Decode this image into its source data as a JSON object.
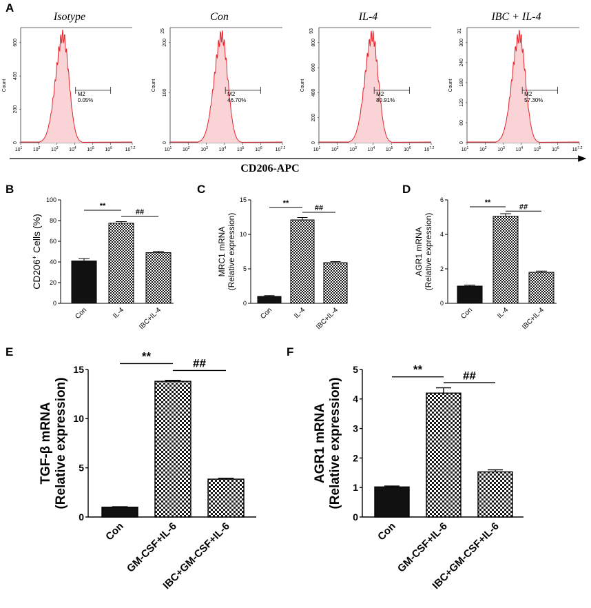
{
  "figure": {
    "panel_letters": [
      "A",
      "B",
      "C",
      "D",
      "E",
      "F"
    ],
    "flow_axis_label": "CD206-APC",
    "flow_x_ticks": [
      {
        "base": "10",
        "exp": "1"
      },
      {
        "base": "10",
        "exp": "2"
      },
      {
        "base": "10",
        "exp": "3"
      },
      {
        "base": "10",
        "exp": "4"
      },
      {
        "base": "10",
        "exp": "5"
      },
      {
        "base": "10",
        "exp": "6"
      },
      {
        "base": "10",
        "exp": "7.2"
      }
    ],
    "flow_y_label": "Count",
    "gate_label": "M2"
  },
  "colors": {
    "hist_line": "#e8222a",
    "hist_fill": "#f9d3d5",
    "bar_solid": "#111111",
    "axis": "#000000"
  },
  "chart_data": [
    {
      "type": "histogram",
      "panel": "A",
      "histograms": [
        {
          "title": "Isotype",
          "gate_percent": "0.05%",
          "peak_log": 3.35,
          "y_top_label": "",
          "y_ticks": [
            0,
            200,
            400,
            600
          ]
        },
        {
          "title": "Con",
          "gate_percent": "46.70%",
          "peak_log": 3.85,
          "y_top_label": "25",
          "y_ticks": [
            0,
            100,
            200
          ]
        },
        {
          "title": "IL-4",
          "gate_percent": "80.91%",
          "peak_log": 3.95,
          "y_top_label": "93",
          "y_ticks": [
            0,
            200,
            400,
            600,
            800
          ]
        },
        {
          "title": "IBC + IL-4",
          "gate_percent": "57.30%",
          "peak_log": 3.9,
          "y_top_label": "31",
          "y_ticks": [
            0,
            60,
            120,
            180,
            240,
            300
          ]
        }
      ],
      "xlabel": "CD206-APC"
    },
    {
      "type": "bar",
      "panel": "B",
      "categories": [
        "Con",
        "IL-4",
        "IBC+IL-4"
      ],
      "values": [
        41,
        77.5,
        49
      ],
      "errors": [
        2.2,
        1.5,
        1.2
      ],
      "patterns": [
        "solid",
        "check",
        "check"
      ],
      "ylabel": "CD206<sup>+</sup> Cells (%)",
      "ylabel_lines": [
        "CD206+ Cells (%)"
      ],
      "ylim": [
        0,
        100
      ],
      "yticks": [
        0,
        20,
        40,
        60,
        80,
        100
      ],
      "sig": [
        {
          "from": 0,
          "to": 1,
          "label": "**",
          "y": 90
        },
        {
          "from": 1,
          "to": 2,
          "label": "##",
          "y": 84
        }
      ]
    },
    {
      "type": "bar",
      "panel": "C",
      "categories": [
        "Con",
        "IL-4",
        "IBC+IL-4"
      ],
      "values": [
        1,
        12.1,
        5.9
      ],
      "errors": [
        0.12,
        0.35,
        0.15
      ],
      "patterns": [
        "solid",
        "check",
        "check"
      ],
      "ylabel_lines": [
        "MRC1 mRNA",
        "(Relative expression)"
      ],
      "ylim": [
        0,
        15
      ],
      "yticks": [
        0,
        5,
        10,
        15
      ],
      "sig": [
        {
          "from": 0,
          "to": 1,
          "label": "**",
          "y": 13.9
        },
        {
          "from": 1,
          "to": 2,
          "label": "##",
          "y": 13.2
        }
      ]
    },
    {
      "type": "bar",
      "panel": "D",
      "categories": [
        "Con",
        "IL-4",
        "IBC+IL-4"
      ],
      "values": [
        1,
        5.05,
        1.8
      ],
      "errors": [
        0.06,
        0.15,
        0.07
      ],
      "patterns": [
        "solid",
        "check",
        "check"
      ],
      "ylabel_lines": [
        "AGR1 mRNA",
        "(Relative expression)"
      ],
      "ylim": [
        0,
        6
      ],
      "yticks": [
        0,
        2,
        4,
        6
      ],
      "sig": [
        {
          "from": 0,
          "to": 1,
          "label": "**",
          "y": 5.6
        },
        {
          "from": 1,
          "to": 2,
          "label": "##",
          "y": 5.35
        }
      ]
    },
    {
      "type": "bar",
      "panel": "E",
      "categories": [
        "Con",
        "GM-CSF+IL-6",
        "IBC+GM-CSF+IL-6"
      ],
      "values": [
        1,
        13.8,
        3.85
      ],
      "errors": [
        0.05,
        0.1,
        0.1
      ],
      "patterns": [
        "solid",
        "check",
        "check"
      ],
      "ylabel_lines": [
        "TGF-β mRNA",
        "(Relative expression)"
      ],
      "ylim": [
        0,
        15
      ],
      "yticks": [
        0,
        5,
        10,
        15
      ],
      "sig": [
        {
          "from": 0,
          "to": 1,
          "label": "**",
          "y": 15.6
        },
        {
          "from": 1,
          "to": 2,
          "label": "##",
          "y": 14.9
        }
      ]
    },
    {
      "type": "bar",
      "panel": "F",
      "categories": [
        "Con",
        "GM-CSF+IL-6",
        "IBC+GM-CSF+IL-6"
      ],
      "values": [
        1.02,
        4.2,
        1.53
      ],
      "errors": [
        0.03,
        0.18,
        0.07
      ],
      "patterns": [
        "solid",
        "check",
        "check"
      ],
      "ylabel_lines": [
        "AGR1 mRNA",
        "(Relative expression)"
      ],
      "ylim": [
        0,
        5
      ],
      "yticks": [
        0,
        1,
        2,
        3,
        4,
        5
      ],
      "sig": [
        {
          "from": 0,
          "to": 1,
          "label": "**",
          "y": 4.75
        },
        {
          "from": 1,
          "to": 2,
          "label": "##",
          "y": 4.55
        }
      ]
    }
  ]
}
